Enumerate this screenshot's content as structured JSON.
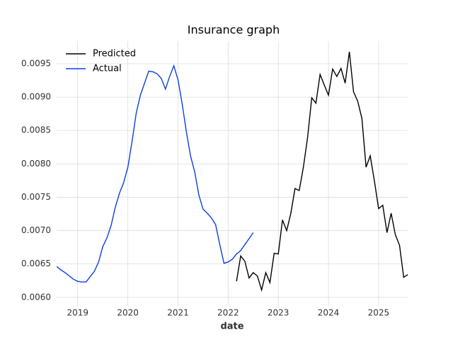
{
  "chart_data": {
    "type": "line",
    "title": "Insurance graph",
    "x_label": "date",
    "series": [
      {
        "name": "Predicted",
        "color": "#000000",
        "x": [
          2022.167,
          2022.25,
          2022.333,
          2022.417,
          2022.5,
          2022.583,
          2022.667,
          2022.75,
          2022.833,
          2022.917,
          2023.0,
          2023.083,
          2023.167,
          2023.25,
          2023.333,
          2023.417,
          2023.5,
          2023.583,
          2023.667,
          2023.75,
          2023.833,
          2023.917,
          2024.0,
          2024.083,
          2024.167,
          2024.25,
          2024.333,
          2024.417,
          2024.5,
          2024.583,
          2024.667,
          2024.75,
          2024.833,
          2024.917,
          2025.0,
          2025.083,
          2025.167,
          2025.25,
          2025.333,
          2025.417,
          2025.5,
          2025.583
        ],
        "values": [
          0.00624,
          0.00662,
          0.00654,
          0.00629,
          0.00637,
          0.00632,
          0.00611,
          0.00637,
          0.00622,
          0.00666,
          0.00665,
          0.00716,
          0.007,
          0.00726,
          0.00763,
          0.0076,
          0.00795,
          0.00839,
          0.00899,
          0.00891,
          0.00934,
          0.00918,
          0.00903,
          0.00942,
          0.00931,
          0.00943,
          0.00921,
          0.00968,
          0.00908,
          0.00894,
          0.00868,
          0.00795,
          0.00812,
          0.00774,
          0.00733,
          0.00738,
          0.00697,
          0.00726,
          0.00694,
          0.00678,
          0.0063,
          0.00634
        ]
      },
      {
        "name": "Actual",
        "color": "#0c3fe3",
        "x": [
          2018.583,
          2018.667,
          2018.75,
          2018.833,
          2018.917,
          2019.0,
          2019.083,
          2019.167,
          2019.25,
          2019.333,
          2019.417,
          2019.5,
          2019.583,
          2019.667,
          2019.75,
          2019.833,
          2019.917,
          2020.0,
          2020.083,
          2020.167,
          2020.25,
          2020.333,
          2020.417,
          2020.5,
          2020.583,
          2020.667,
          2020.75,
          2020.833,
          2020.917,
          2021.0,
          2021.083,
          2021.167,
          2021.25,
          2021.333,
          2021.417,
          2021.5,
          2021.583,
          2021.667,
          2021.75,
          2021.833,
          2021.917,
          2022.0,
          2022.083,
          2022.167,
          2022.25,
          2022.333,
          2022.417,
          2022.5
        ],
        "values": [
          0.00646,
          0.00641,
          0.00637,
          0.00632,
          0.00627,
          0.00624,
          0.00623,
          0.00623,
          0.00631,
          0.00639,
          0.00653,
          0.00676,
          0.00689,
          0.00708,
          0.00735,
          0.00756,
          0.00772,
          0.00795,
          0.00833,
          0.00876,
          0.00903,
          0.00921,
          0.00939,
          0.00938,
          0.00935,
          0.00928,
          0.00912,
          0.00931,
          0.00947,
          0.00926,
          0.0089,
          0.00848,
          0.00812,
          0.00788,
          0.00753,
          0.00732,
          0.00726,
          0.00719,
          0.00709,
          0.00679,
          0.00651,
          0.00653,
          0.00657,
          0.00665,
          0.0067,
          0.00679,
          0.00688,
          0.00697
        ]
      }
    ],
    "xlim": [
      2018.58,
      2025.58
    ],
    "xticks": [
      2019,
      2020,
      2021,
      2022,
      2023,
      2024,
      2025
    ],
    "ylim": [
      0.00587,
      0.00984
    ],
    "yticks": [
      {
        "value": 0.006,
        "label": "0.0060"
      },
      0.0065,
      {
        "value": 0.007,
        "label": "0.0070"
      },
      0.0075,
      {
        "value": 0.008,
        "label": "0.0080"
      },
      0.0085,
      {
        "value": 0.009,
        "label": "0.0090"
      },
      0.0095
    ],
    "grid": true,
    "legend": "upper left"
  }
}
